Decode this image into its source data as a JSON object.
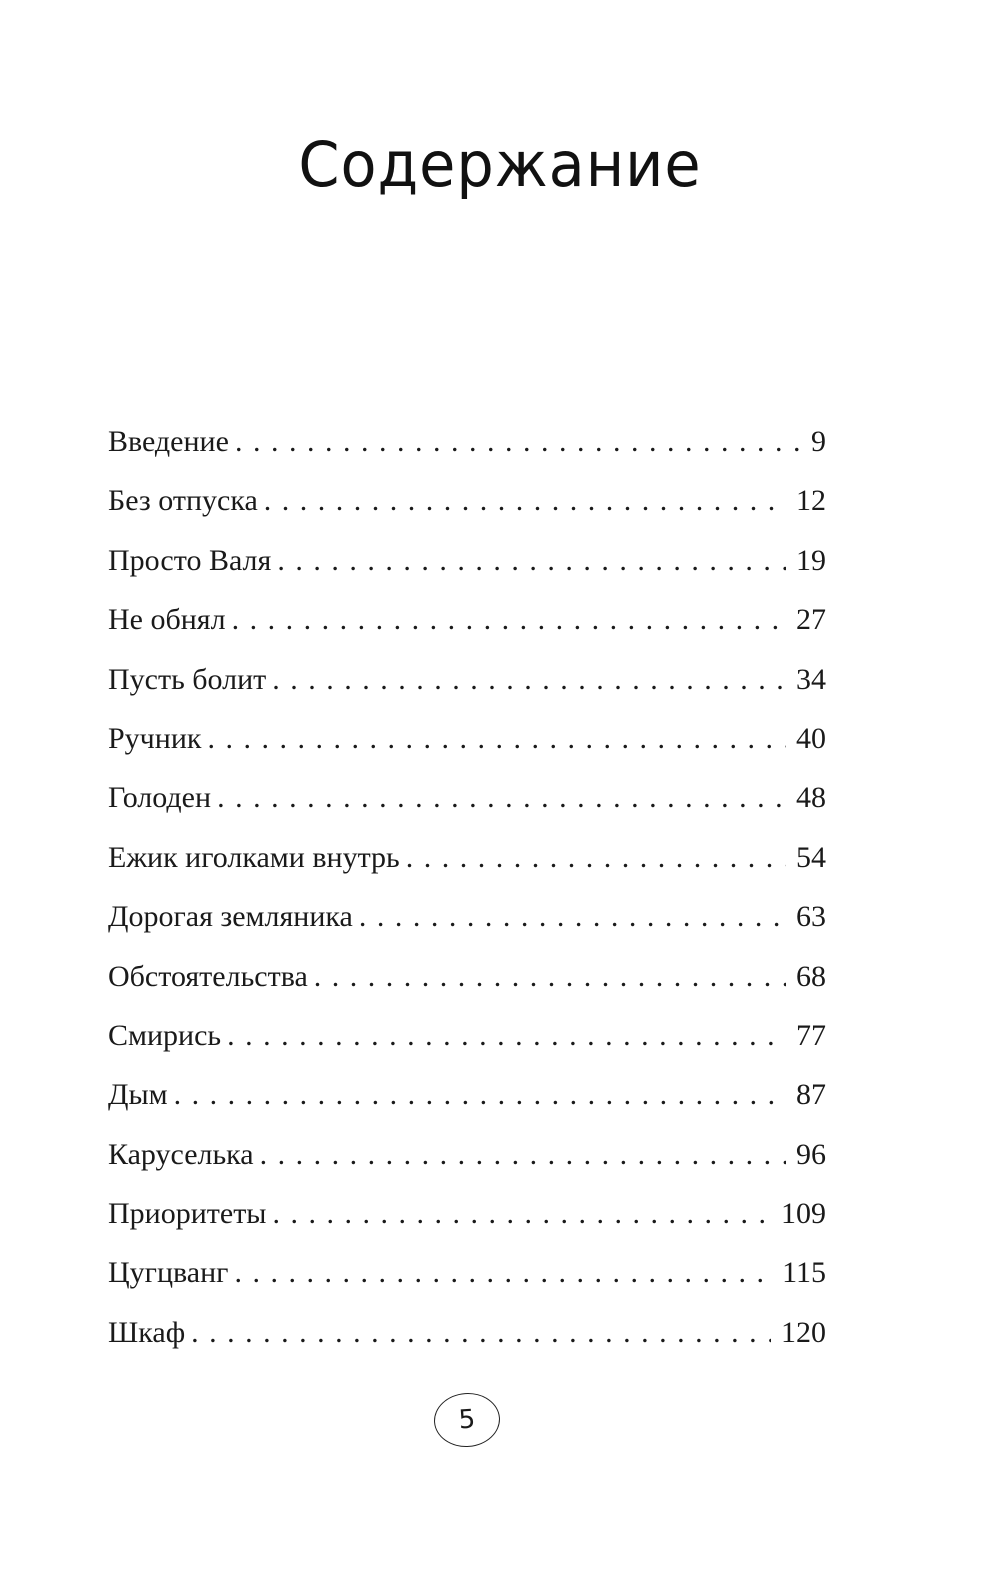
{
  "title": "Содержание",
  "entries": [
    {
      "title": "Введение",
      "page": "9"
    },
    {
      "title": "Без отпуска",
      "page": "12"
    },
    {
      "title": "Просто Валя",
      "page": "19"
    },
    {
      "title": "Не обнял",
      "page": "27"
    },
    {
      "title": "Пусть болит",
      "page": "34"
    },
    {
      "title": "Ручник",
      "page": "40"
    },
    {
      "title": "Голоден",
      "page": "48"
    },
    {
      "title": "Ежик иголками внутрь",
      "page": "54"
    },
    {
      "title": "Дорогая земляника",
      "page": "63"
    },
    {
      "title": "Обстоятельства",
      "page": "68"
    },
    {
      "title": "Смирись",
      "page": "77"
    },
    {
      "title": "Дым",
      "page": "87"
    },
    {
      "title": "Каруселька",
      "page": "96"
    },
    {
      "title": "Приоритеты",
      "page": "109"
    },
    {
      "title": "Цугцванг",
      "page": "115"
    },
    {
      "title": "Шкаф",
      "page": "120"
    }
  ],
  "page_number": "5"
}
